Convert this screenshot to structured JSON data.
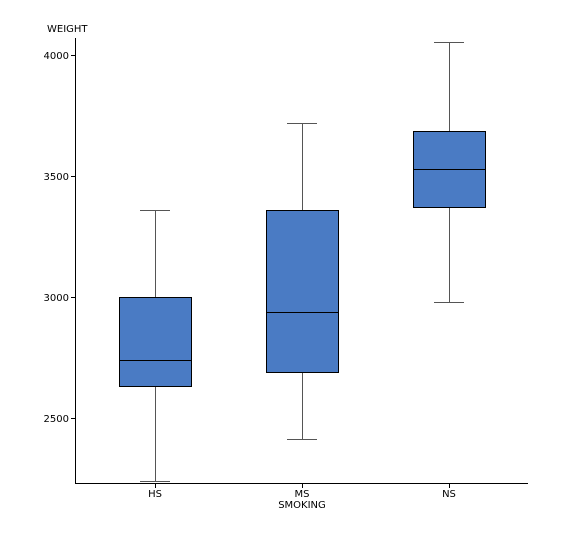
{
  "chart_data": {
    "type": "box",
    "xlabel": "SMOKING",
    "ylabel": "WEIGHT",
    "ylim": [
      2230,
      4070
    ],
    "yticks": [
      2500,
      3000,
      3500,
      4000
    ],
    "grid": false,
    "colors": {
      "box_fill": "#4a7bc4",
      "box_stroke": "#000000",
      "whisker": "#555555"
    },
    "categories": [
      "HS",
      "MS",
      "NS"
    ],
    "series": [
      {
        "category": "HS",
        "min": 2240,
        "q1": 2630,
        "median": 2740,
        "q3": 3000,
        "max": 3360
      },
      {
        "category": "MS",
        "min": 2410,
        "q1": 2690,
        "median": 2935,
        "q3": 3360,
        "max": 3720
      },
      {
        "category": "NS",
        "min": 2980,
        "q1": 3370,
        "median": 3530,
        "q3": 3685,
        "max": 4055
      }
    ]
  }
}
